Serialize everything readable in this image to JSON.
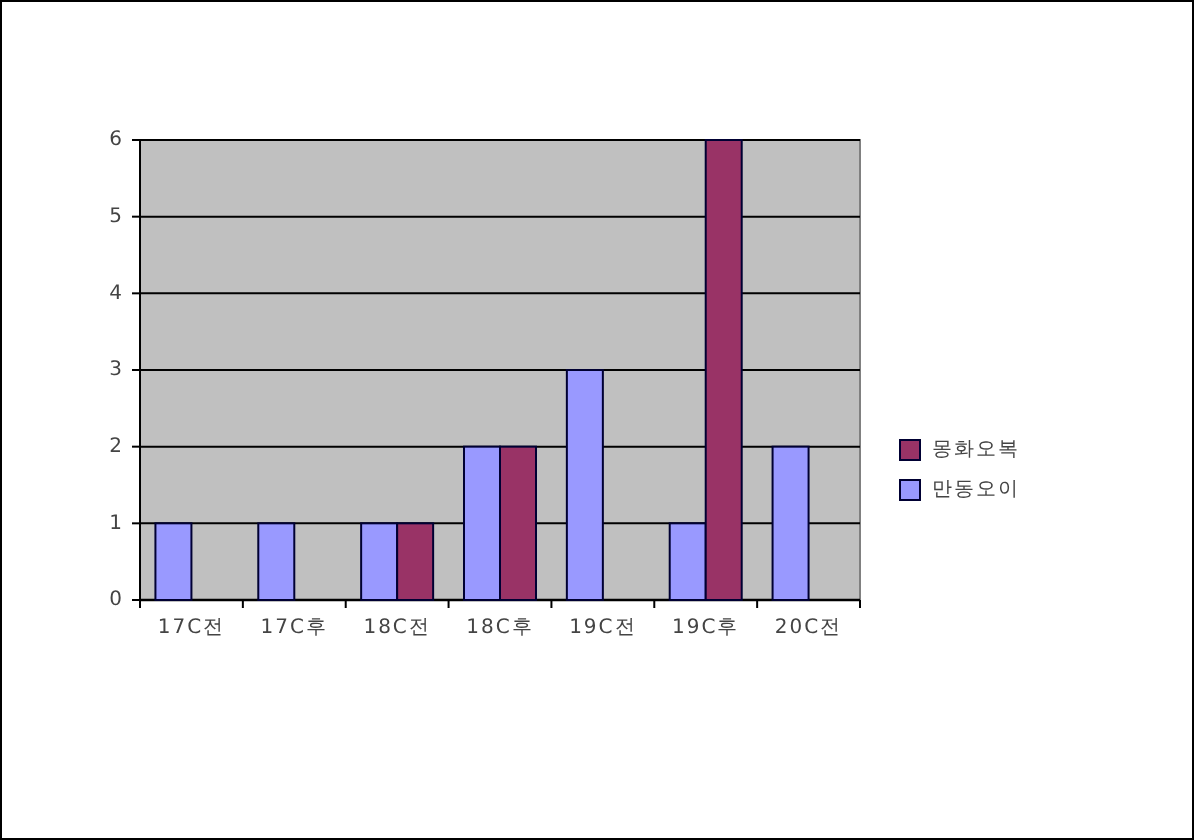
{
  "chart_data": {
    "type": "bar",
    "categories": [
      "17C전",
      "17C후",
      "18C전",
      "18C후",
      "19C전",
      "19C후",
      "20C전"
    ],
    "series": [
      {
        "name": "만동오이",
        "color": "#9999ff",
        "values": [
          1,
          1,
          1,
          2,
          3,
          1,
          2
        ]
      },
      {
        "name": "몽화오복",
        "color": "#993366",
        "values": [
          null,
          null,
          1,
          2,
          null,
          6,
          null
        ]
      }
    ],
    "ylim": [
      0,
      6
    ],
    "yticks": [
      0,
      1,
      2,
      3,
      4,
      5,
      6
    ],
    "grid": "y",
    "legend": "right"
  }
}
